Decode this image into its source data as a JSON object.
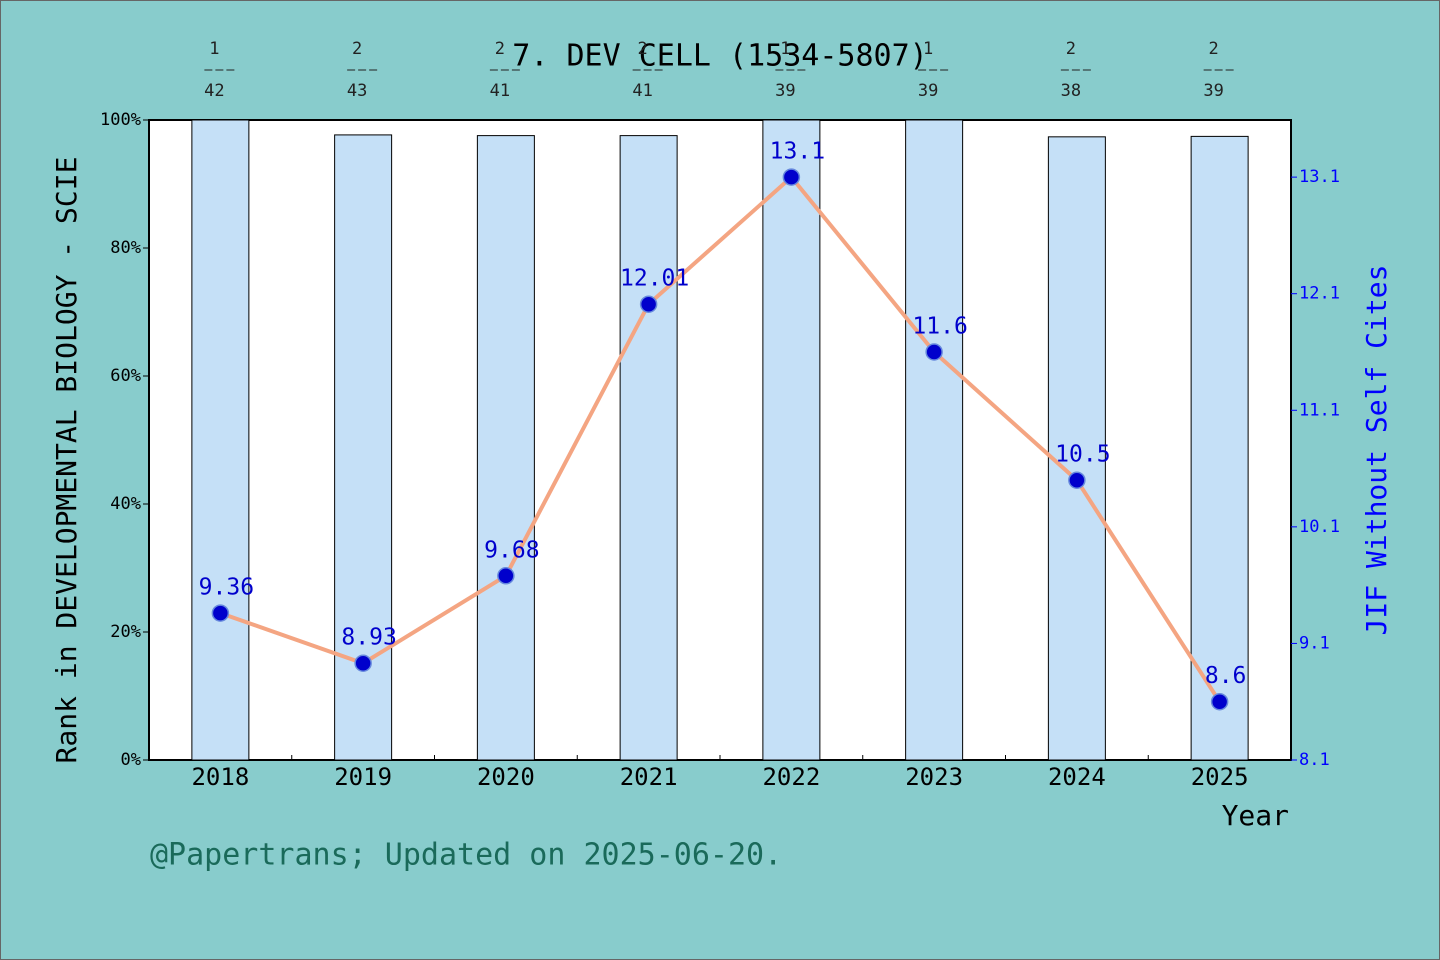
{
  "chart_data": {
    "type": "bar",
    "title": "7. DEV CELL (1534-5807)",
    "ylabel": "Rank in DEVELOPMENTAL BIOLOGY - SCIE",
    "y2label": "JIF Without Self Cites",
    "xlabel": "Year",
    "footer": "@Papertrans; Updated on 2025-06-20.",
    "categories": [
      "2018",
      "2019",
      "2020",
      "2021",
      "2022",
      "2023",
      "2024",
      "2025"
    ],
    "rank": [
      1,
      2,
      2,
      2,
      1,
      1,
      2,
      2
    ],
    "total": [
      42,
      43,
      41,
      41,
      39,
      39,
      38,
      39
    ],
    "series": [
      {
        "type": "bar",
        "color": "#c5e0f7",
        "values": [
          100,
          97.67,
          97.56,
          97.56,
          100,
          100,
          97.37,
          97.44
        ]
      },
      {
        "type": "line",
        "axis": "y2",
        "color": "#f4a582",
        "marker_color": "#0000cc",
        "values": [
          9.36,
          8.93,
          9.68,
          12.01,
          13.1,
          11.6,
          10.5,
          8.6
        ]
      }
    ],
    "ylim": [
      0,
      100
    ],
    "yticks": [
      {
        "value": 0,
        "label": "0%"
      },
      {
        "value": 20,
        "label": "20%"
      },
      {
        "value": 40,
        "label": "40%"
      },
      {
        "value": 60,
        "label": "60%"
      },
      {
        "value": 80,
        "label": "80%"
      },
      {
        "value": 100,
        "label": "100%"
      }
    ],
    "y2lim": [
      8.1,
      13.59
    ],
    "y2ticks": [
      8.1,
      9.1,
      10.1,
      11.1,
      12.1,
      13.1
    ]
  }
}
